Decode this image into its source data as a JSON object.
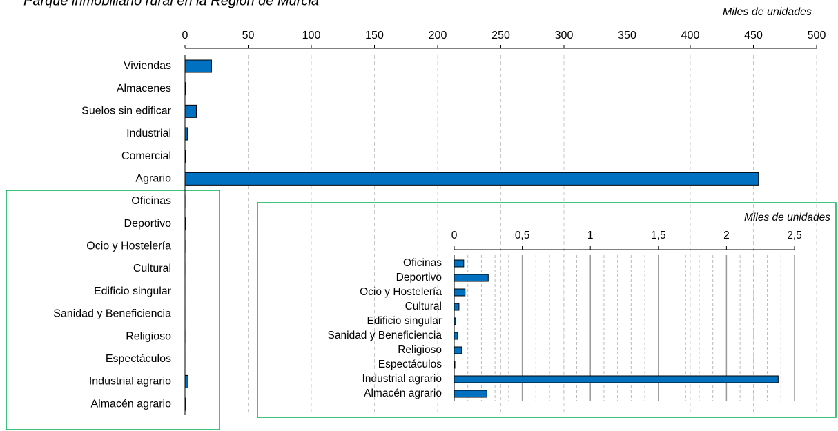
{
  "chart_data": [
    {
      "type": "barh",
      "title": "Parque inmobiliario rural en la Región de Murcia",
      "xlabel": "Miles de unidades",
      "categories": [
        "Viviendas",
        "Almacenes",
        "Suelos sin edificar",
        "Industrial",
        "Comercial",
        "Agrario",
        "Oficinas",
        "Deportivo",
        "Ocio y Hostelería",
        "Cultural",
        "Edificio singular",
        "Sanidad y Beneficiencia",
        "Religioso",
        "Espectáculos",
        "Industrial agrario",
        "Almacén agrario"
      ],
      "values": [
        21,
        0.3,
        9,
        2,
        0.3,
        454,
        0.07,
        0.25,
        0.08,
        0.035,
        0.01,
        0.025,
        0.055,
        0.005,
        2.38,
        0.24
      ],
      "color": "#0070c0",
      "xlim": [
        0,
        500
      ],
      "xticks": [
        0,
        50,
        100,
        150,
        200,
        250,
        300,
        350,
        400,
        450,
        500
      ],
      "grid": true
    },
    {
      "type": "barh",
      "xlabel": "Miles de unidades",
      "categories": [
        "Oficinas",
        "Deportivo",
        "Ocio y Hostelería",
        "Cultural",
        "Edificio singular",
        "Sanidad y Beneficiencia",
        "Religioso",
        "Espectáculos",
        "Industrial agrario",
        "Almacén agrario"
      ],
      "values": [
        0.07,
        0.25,
        0.08,
        0.035,
        0.01,
        0.025,
        0.055,
        0.005,
        2.38,
        0.24
      ],
      "color": "#0070c0",
      "xlim": [
        0,
        2.5
      ],
      "xticks": [
        0,
        {
          "value": 0.5,
          "label": "0,5"
        },
        1,
        {
          "value": 1.5,
          "label": "1,5"
        },
        2,
        {
          "value": 2.5,
          "label": "2,5"
        }
      ],
      "grid": true,
      "minor_grid": 0.1
    }
  ]
}
